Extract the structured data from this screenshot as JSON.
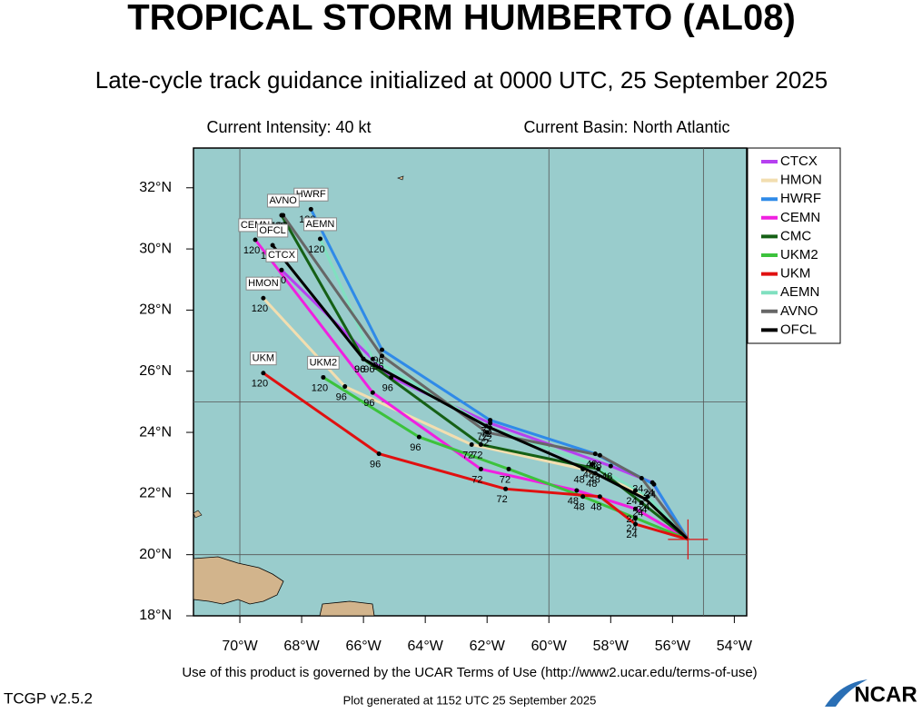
{
  "chart_data": {
    "type": "track",
    "title": "TROPICAL STORM HUMBERTO (AL08)",
    "subtitle": "Late-cycle track guidance initialized at 0000 UTC, 25 September 2025",
    "annotations": [
      "Current Intensity: 40 kt",
      "Current Basin: North Atlantic"
    ],
    "footer": "Use of this product is governed by the UCAR Terms of Use (http://www2.ucar.edu/terms-of-use)",
    "version": "TCGP v2.5.2",
    "generated": "Plot generated at 1152 UTC   25 September 2025",
    "logo": "NCAR",
    "xlim": [
      -71.5,
      -53.6
    ],
    "ylim": [
      18,
      33.3
    ],
    "xticks": [
      {
        "value": -70,
        "label": "70°W"
      },
      {
        "value": -68,
        "label": "68°W"
      },
      {
        "value": -66,
        "label": "66°W"
      },
      {
        "value": -64,
        "label": "64°W"
      },
      {
        "value": -62,
        "label": "62°W"
      },
      {
        "value": -60,
        "label": "60°W"
      },
      {
        "value": -58,
        "label": "58°W"
      },
      {
        "value": -56,
        "label": "56°W"
      },
      {
        "value": -54,
        "label": "54°W"
      }
    ],
    "yticks": [
      {
        "value": 18,
        "label": "18°N"
      },
      {
        "value": 20,
        "label": "20°N"
      },
      {
        "value": 22,
        "label": "22°N"
      },
      {
        "value": 24,
        "label": "24°N"
      },
      {
        "value": 26,
        "label": "26°N"
      },
      {
        "value": 28,
        "label": "28°N"
      },
      {
        "value": 30,
        "label": "30°N"
      },
      {
        "value": 32,
        "label": "32°N"
      }
    ],
    "grid_x": [
      -70,
      -60,
      -55
    ],
    "grid_y": [
      20,
      25
    ],
    "current": {
      "x": -55.5,
      "y": 20.5
    },
    "hours": [
      24,
      48,
      72,
      96,
      120
    ],
    "series": [
      {
        "name": "CTCX",
        "color": "#b640f0",
        "x": [
          -56.65,
          -58.0,
          -61.9,
          -65.1,
          -68.65
        ],
        "values": [
          22.36,
          22.9,
          24.3,
          25.8,
          29.31
        ]
      },
      {
        "name": "HMON",
        "color": "#f2deb0",
        "x": [
          -57.2,
          -58.9,
          -62.5,
          -66.6,
          -69.24
        ],
        "values": [
          22.1,
          22.8,
          23.6,
          25.5,
          28.39
        ]
      },
      {
        "name": "HWRF",
        "color": "#2f8ae8",
        "x": [
          -56.6,
          -58.5,
          -61.9,
          -65.4,
          -67.7
        ],
        "values": [
          22.3,
          23.3,
          24.4,
          26.7,
          31.3
        ]
      },
      {
        "name": "CEMN",
        "color": "#f020e0",
        "x": [
          -57.2,
          -59.1,
          -62.2,
          -65.7,
          -69.5
        ],
        "values": [
          21.5,
          22.1,
          22.8,
          25.3,
          30.3
        ]
      },
      {
        "name": "CMC",
        "color": "#156015",
        "x": [
          -57.0,
          -58.4,
          -62.2,
          -66.0,
          -68.65
        ],
        "values": [
          21.7,
          22.8,
          23.6,
          26.4,
          31.1
        ]
      },
      {
        "name": "UKM2",
        "color": "#3cc23c",
        "x": [
          -57.2,
          -58.9,
          -61.3,
          -64.2,
          -67.3
        ],
        "values": [
          21.2,
          21.9,
          22.8,
          23.85,
          25.8
        ]
      },
      {
        "name": "UKM",
        "color": "#e01010",
        "x": [
          -57.2,
          -58.35,
          -61.4,
          -65.5,
          -69.24
        ],
        "values": [
          21.0,
          21.9,
          22.15,
          23.3,
          25.94
        ]
      },
      {
        "name": "AEMN",
        "color": "#80e0c0",
        "x": [
          -56.8,
          -58.6,
          -61.9,
          -65.7,
          -67.4
        ],
        "values": [
          21.9,
          22.96,
          24.15,
          26.4,
          30.33
        ]
      },
      {
        "name": "AVNO",
        "color": "#666666",
        "x": [
          -57.0,
          -58.35,
          -62.0,
          -65.4,
          -68.6
        ],
        "values": [
          22.5,
          23.25,
          24.0,
          26.5,
          31.1
        ]
      },
      {
        "name": "OFCL",
        "color": "#000000",
        "x": [
          -56.88,
          -58.5,
          -62.03,
          -66.0,
          -68.94
        ],
        "values": [
          21.82,
          22.66,
          24.21,
          26.4,
          30.12
        ]
      }
    ]
  }
}
